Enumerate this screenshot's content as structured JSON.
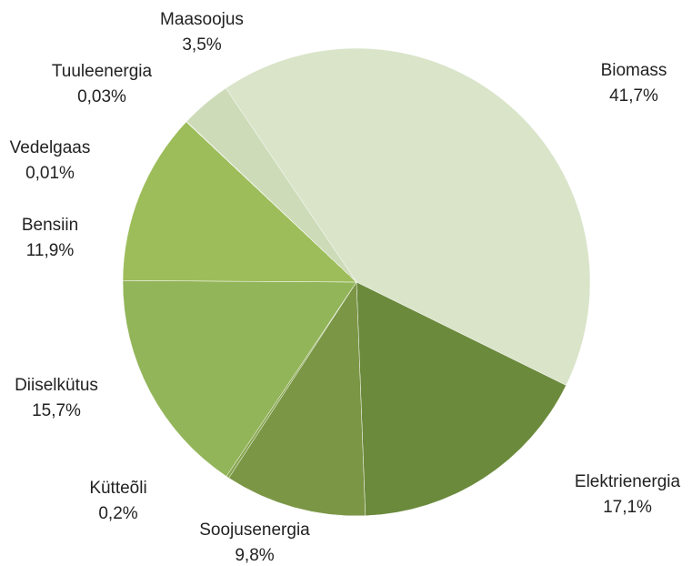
{
  "chart_data": {
    "type": "pie",
    "categories": [
      "Biomass",
      "Elektrienergia",
      "Soojusenergia",
      "Kütteõli",
      "Diiselkütus",
      "Bensiin",
      "Vedelgaas",
      "Tuuleenergia",
      "Maasoojus"
    ],
    "values": [
      41.7,
      17.1,
      9.8,
      0.2,
      15.7,
      11.9,
      0.01,
      0.03,
      3.5
    ],
    "value_labels": [
      "41,7%",
      "17,1%",
      "9,8%",
      "0,2%",
      "15,7%",
      "11,9%",
      "0,01%",
      "0,03%",
      "3,5%"
    ],
    "colors": [
      "#d9e4c9",
      "#6b8a3c",
      "#7b9645",
      "#86a64e",
      "#93b55a",
      "#9dbd5a",
      "#a9c57a",
      "#c2d4a6",
      "#cddbb8"
    ]
  }
}
